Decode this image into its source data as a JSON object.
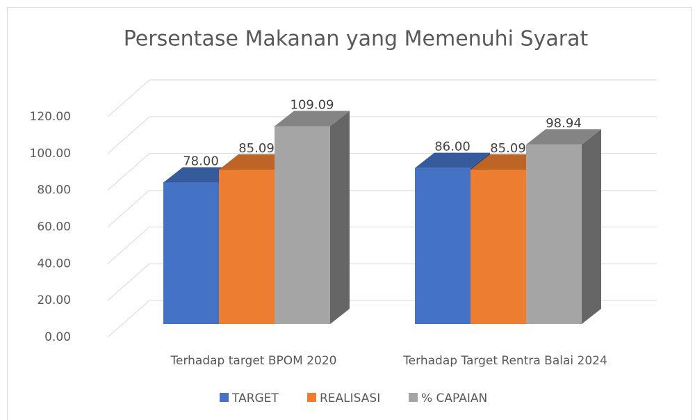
{
  "chart_data": {
    "type": "bar3d",
    "title": "Persentase Makanan yang Memenuhi Syarat",
    "categories": [
      "Terhadap target BPOM 2020",
      "Terhadap Target Rentra Balai 2024"
    ],
    "series": [
      {
        "name": "TARGET",
        "color": "#4472c4",
        "values": [
          78,
          86
        ],
        "value_labels": [
          "78.00",
          "86.00"
        ]
      },
      {
        "name": "REALISASI",
        "color": "#ed7d31",
        "values": [
          85.09,
          85.09
        ],
        "value_labels": [
          "85.09",
          "85.09"
        ]
      },
      {
        "name": "% CAPAIAN",
        "color": "#a5a5a5",
        "values": [
          109.09,
          98.94
        ],
        "value_labels": [
          "109.09",
          "98.94"
        ]
      }
    ],
    "ylim": [
      0,
      120
    ],
    "yticks": [
      {
        "value": 0,
        "label": "0.00"
      },
      {
        "value": 20,
        "label": "20.00"
      },
      {
        "value": 40,
        "label": "40.00"
      },
      {
        "value": 60,
        "label": "60.00"
      },
      {
        "value": 80,
        "label": "80.00"
      },
      {
        "value": 100,
        "label": "100.00"
      },
      {
        "value": 120,
        "label": "120.00"
      }
    ],
    "grid": true,
    "legend": "bottom"
  }
}
